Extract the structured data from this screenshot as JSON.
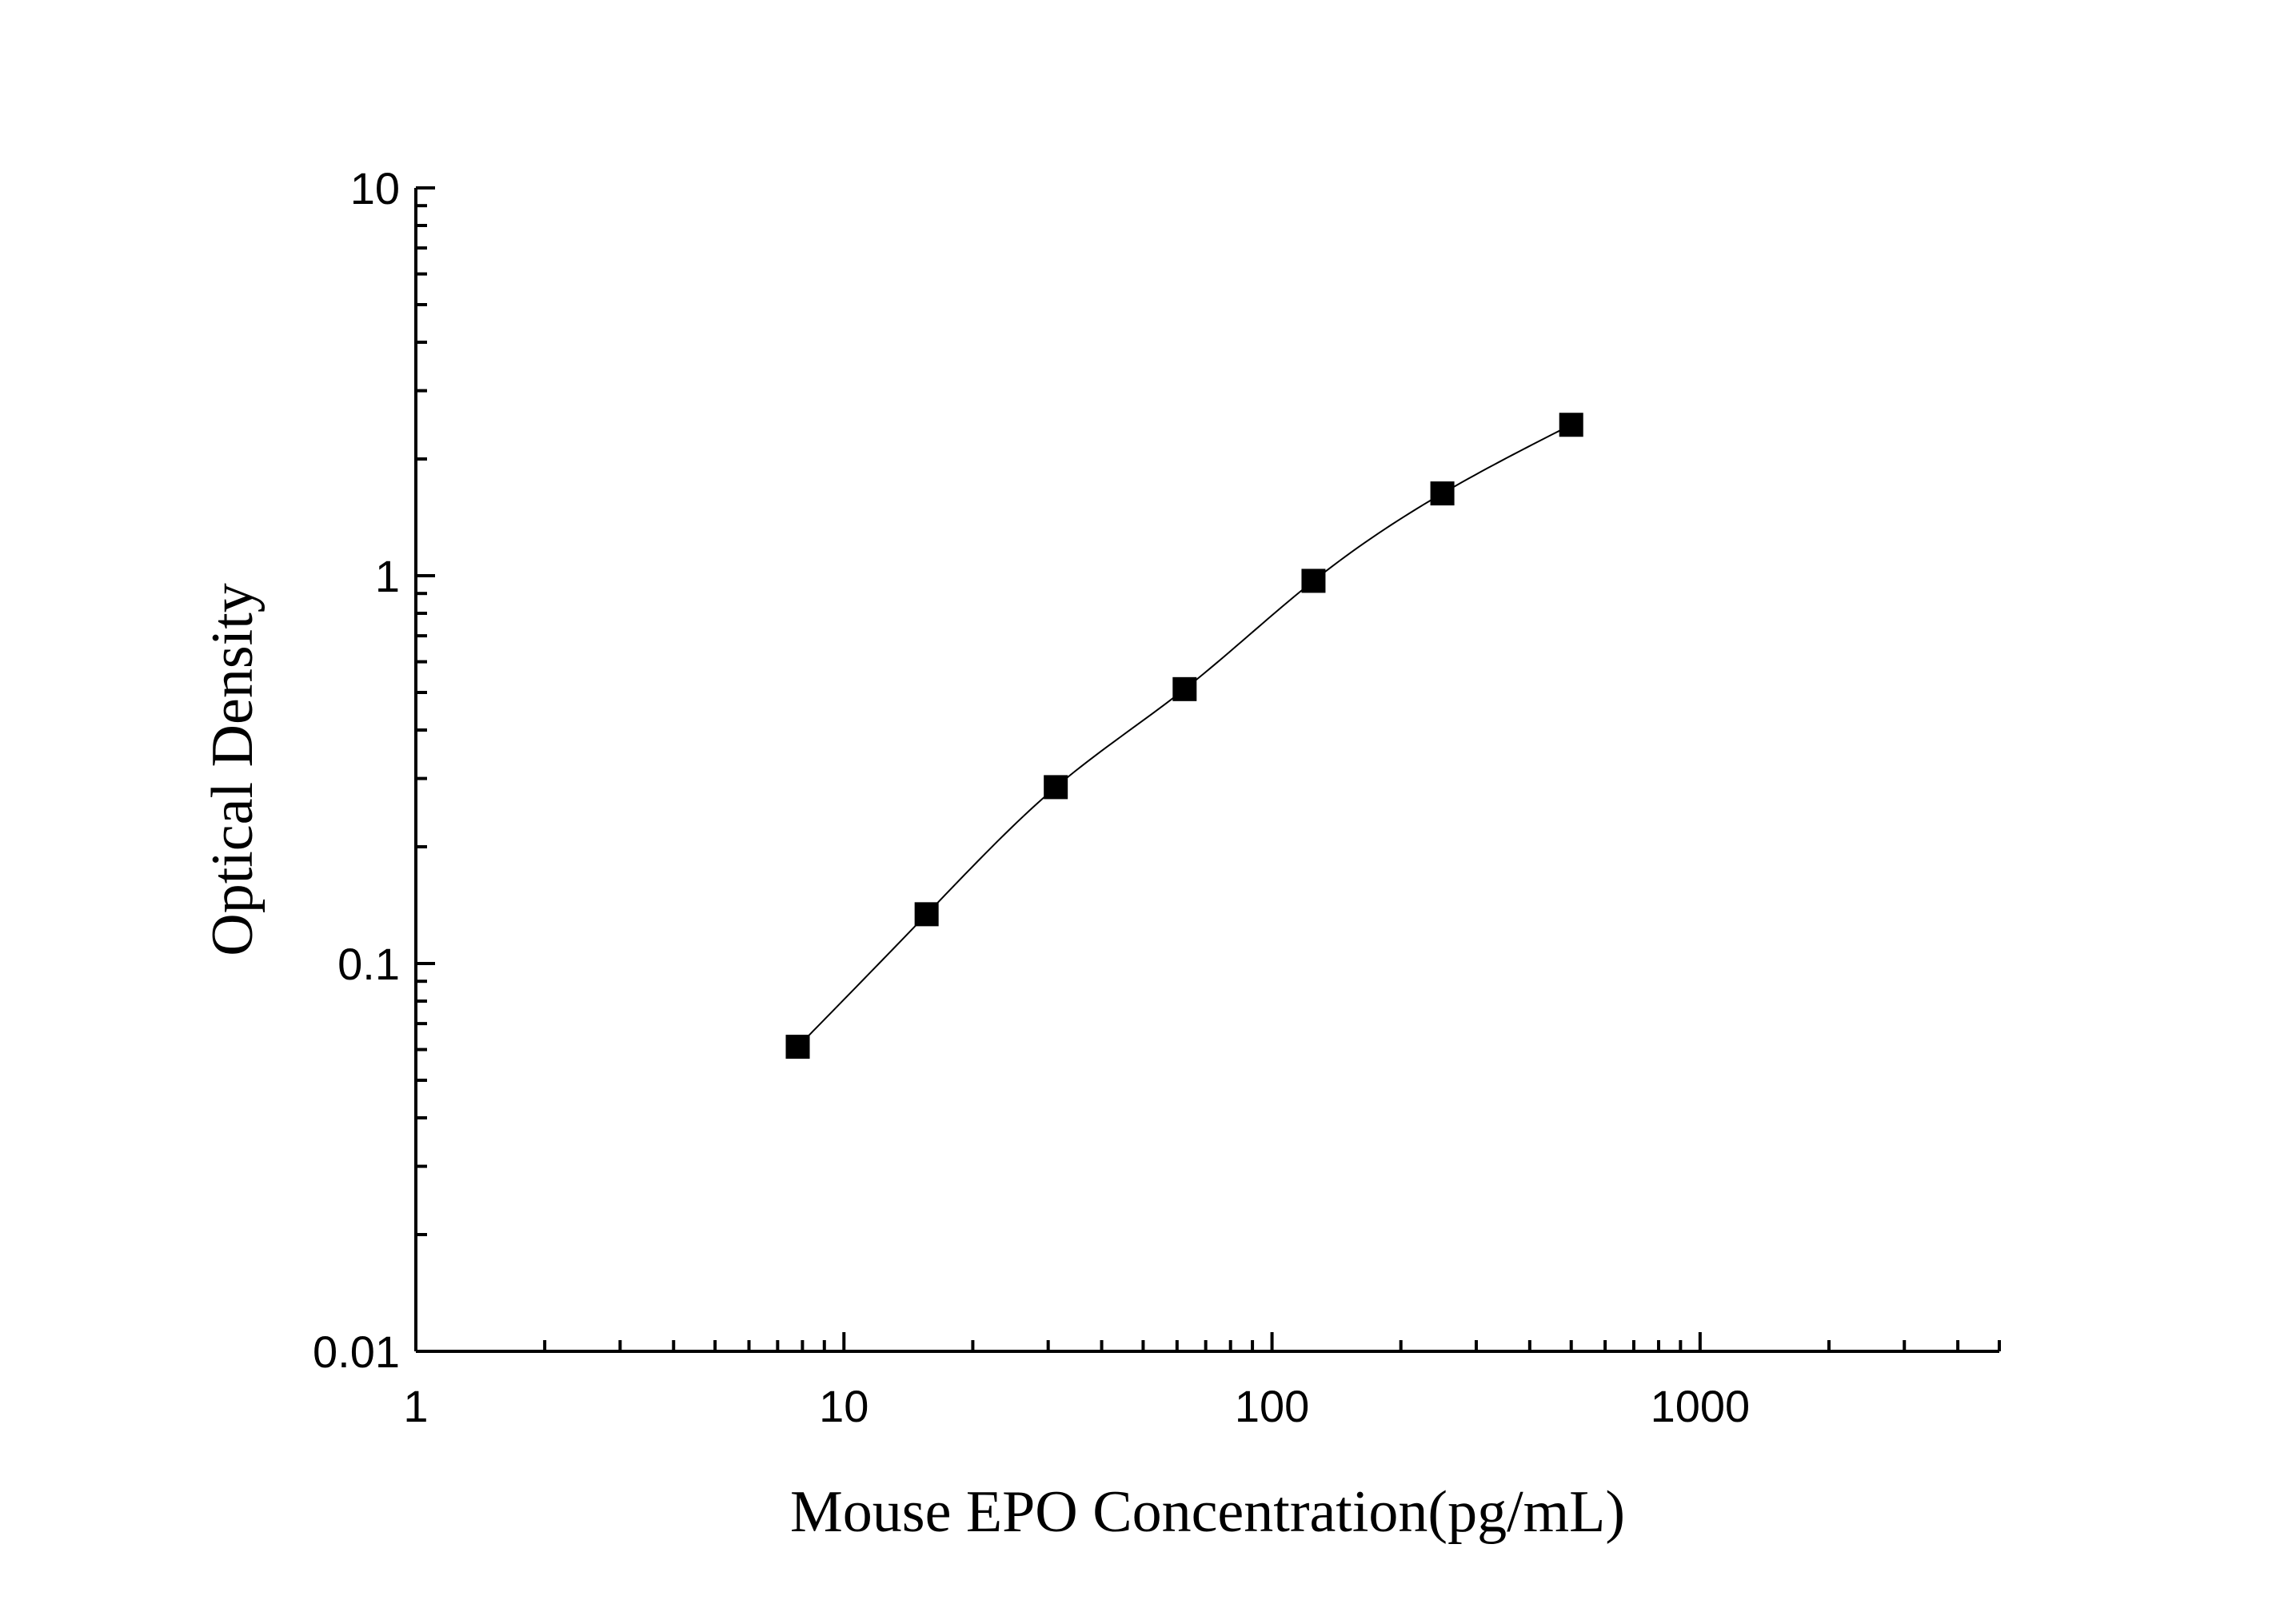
{
  "chart_data": {
    "type": "scatter",
    "title": "",
    "xlabel": "Mouse EPO Concentration(pg/mL)",
    "ylabel": "Optical Density",
    "x_scale": "log",
    "y_scale": "log",
    "xlim": [
      1,
      5000
    ],
    "ylim": [
      0.01,
      10
    ],
    "x_ticks": [
      {
        "value": 1,
        "label": "1"
      },
      {
        "value": 10,
        "label": "10"
      },
      {
        "value": 100,
        "label": "100"
      },
      {
        "value": 1000,
        "label": "1000"
      }
    ],
    "y_ticks": [
      {
        "value": 0.01,
        "label": "0.01"
      },
      {
        "value": 0.1,
        "label": "0.1"
      },
      {
        "value": 1,
        "label": "1"
      },
      {
        "value": 10,
        "label": "10"
      }
    ],
    "grid": false,
    "legend": "none",
    "marker": "square",
    "series": [
      {
        "fit_line": true,
        "color": "#000000",
        "points": [
          {
            "x": 7.8,
            "y": 0.061
          },
          {
            "x": 15.6,
            "y": 0.134
          },
          {
            "x": 31.25,
            "y": 0.285
          },
          {
            "x": 62.5,
            "y": 0.51
          },
          {
            "x": 125,
            "y": 0.97
          },
          {
            "x": 250,
            "y": 1.63
          },
          {
            "x": 500,
            "y": 2.45
          }
        ]
      }
    ]
  }
}
